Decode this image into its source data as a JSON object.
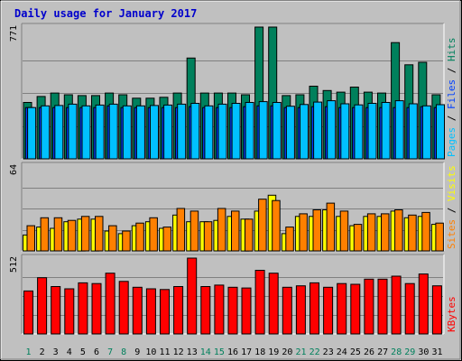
{
  "colors": {
    "background": "#c0c0c0",
    "plot": "#c0c0c0",
    "grid": "#808080",
    "title": "#0000cc",
    "hits": "#00805c",
    "files": "#0040ff",
    "pages": "#00c0ff",
    "visits": "#ffff00",
    "sites": "#ff8000",
    "kbytes": "#ff0000",
    "weekend": "#00805c",
    "weekday": "#000000"
  },
  "chart_data": {
    "type": "bar",
    "title": "Daily usage for January 2017",
    "categories": [
      "1",
      "2",
      "3",
      "4",
      "5",
      "6",
      "7",
      "8",
      "9",
      "10",
      "11",
      "12",
      "13",
      "14",
      "15",
      "16",
      "17",
      "18",
      "19",
      "20",
      "21",
      "22",
      "23",
      "24",
      "25",
      "26",
      "27",
      "28",
      "29",
      "30",
      "31"
    ],
    "weekend_days": [
      "1",
      "7",
      "8",
      "14",
      "15",
      "21",
      "22",
      "28",
      "29"
    ],
    "panels": [
      {
        "ymax_label": "771",
        "ylim": [
          0,
          771
        ],
        "legend": [
          "Pages",
          "Files",
          "Hits"
        ],
        "legend_separator": " / ",
        "series": [
          {
            "name": "Hits",
            "color_key": "hits",
            "values": [
              330,
              365,
              385,
              375,
              370,
              370,
              385,
              375,
              355,
              355,
              360,
              385,
              590,
              385,
              385,
              385,
              375,
              771,
              771,
              370,
              375,
              425,
              400,
              390,
              420,
              390,
              385,
              680,
              550,
              565,
              375
            ]
          },
          {
            "name": "Files",
            "color_key": "files",
            "values": [
              300,
              300,
              300,
              300,
              300,
              300,
              310,
              300,
              300,
              300,
              300,
              300,
              305,
              300,
              300,
              300,
              305,
              310,
              310,
              300,
              300,
              305,
              305,
              300,
              300,
              300,
              300,
              300,
              300,
              305,
              300
            ]
          },
          {
            "name": "Pages",
            "color_key": "pages",
            "values": [
              300,
              310,
              312,
              320,
              310,
              315,
              320,
              310,
              310,
              312,
              315,
              320,
              325,
              310,
              320,
              325,
              330,
              335,
              330,
              308,
              318,
              332,
              340,
              322,
              316,
              325,
              330,
              340,
              322,
              310,
              317
            ]
          }
        ]
      },
      {
        "ymax_label": "64",
        "ylim": [
          0,
          64
        ],
        "legend": [
          "Sites",
          "Visits"
        ],
        "legend_separator": " / ",
        "series": [
          {
            "name": "Visits",
            "color_key": "visits",
            "values": [
              12,
              18,
              17,
              22,
              24,
              24,
              15,
              13,
              19,
              22,
              17,
              27,
              22,
              22,
              23,
              26,
              24,
              30,
              42,
              13,
              26,
              26,
              31,
              26,
              19,
              26,
              26,
              30,
              25,
              26,
              20
            ]
          },
          {
            "name": "Sites",
            "color_key": "sites",
            "values": [
              19,
              25,
              25,
              23,
              26,
              26,
              19,
              15,
              21,
              25,
              18,
              32,
              30,
              22,
              32,
              30,
              24,
              39,
              38,
              18,
              28,
              31,
              36,
              30,
              20,
              28,
              28,
              31,
              27,
              29,
              21
            ]
          }
        ]
      },
      {
        "ymax_label": "512",
        "ylim": [
          0,
          512
        ],
        "legend": [
          "KBytes"
        ],
        "legend_separator": " / ",
        "series": [
          {
            "name": "KBytes",
            "color_key": "kbytes",
            "values": [
              290,
              380,
              320,
              305,
              345,
              340,
              410,
              355,
              315,
              305,
              300,
              320,
              512,
              320,
              330,
              315,
              310,
              430,
              410,
              315,
              325,
              345,
              315,
              340,
              335,
              370,
              370,
              390,
              340,
              405,
              325
            ]
          }
        ]
      }
    ]
  }
}
